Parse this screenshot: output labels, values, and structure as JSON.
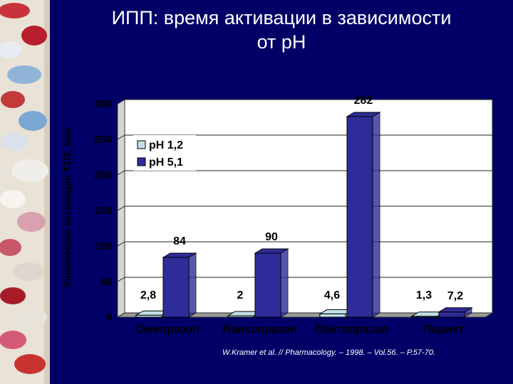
{
  "title": {
    "line1": "ИПП: время активации в зависимости",
    "line2": "от рН"
  },
  "chart_data": {
    "type": "bar",
    "ylabel": "Химическая активация T1/2, мин",
    "ylim": [
      0,
      300
    ],
    "yticks": [
      "0",
      "50",
      "100",
      "150",
      "200",
      "250",
      "300"
    ],
    "categories": [
      "Омепразол",
      "Лансопразол",
      "Пантопразол",
      "Париет"
    ],
    "series": [
      {
        "name": "рН 1,2",
        "values": [
          2.8,
          2,
          4.6,
          1.3
        ],
        "labels": [
          "2,8",
          "2",
          "4,6",
          "1,3"
        ],
        "color": "#bfe0e6"
      },
      {
        "name": "рН 5,1",
        "values": [
          84,
          90,
          282,
          7.2
        ],
        "labels": [
          "84",
          "90",
          "282",
          "7,2"
        ],
        "color": "#2e2c99"
      }
    ],
    "legend_position": "top-left",
    "background": "#ffffff",
    "grid": true
  },
  "source": "W.Kramer et al. // Pharmacology. – 1998. – Vol.56. – P.57-70."
}
